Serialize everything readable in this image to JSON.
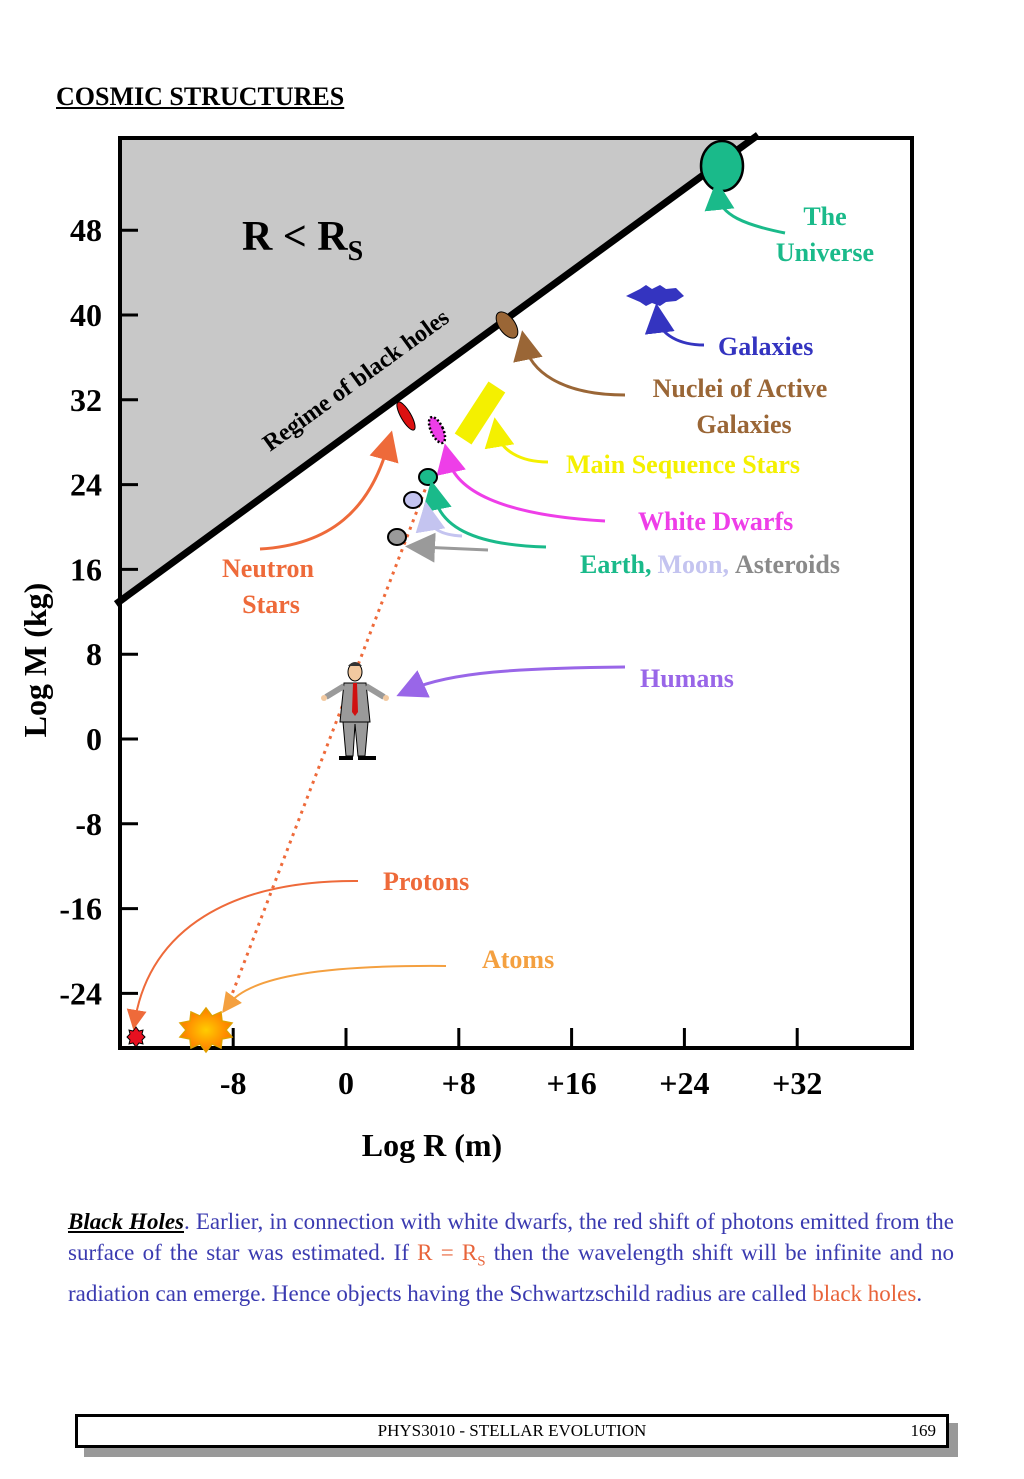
{
  "page_title": "COSMIC STRUCTURES",
  "chart_data": {
    "type": "scatter",
    "xlabel": "Log R (m)",
    "ylabel": "Log M (kg)",
    "xticks": [
      "-8",
      "0",
      "+8",
      "+16",
      "+24",
      "+32"
    ],
    "yticks": [
      "48",
      "40",
      "32",
      "24",
      "16",
      "8",
      "0",
      "-8",
      "-16",
      "-24"
    ],
    "region_label_main": "R < R",
    "region_label_sub": "S",
    "boundary_label": "Regime of black holes",
    "objects": [
      {
        "name": "The Universe",
        "line1": "The",
        "line2": "Universe",
        "color": "#1aba8a"
      },
      {
        "name": "Galaxies",
        "color": "#3434c0"
      },
      {
        "name": "Nuclei of Active Galaxies",
        "line1": "Nuclei of Active",
        "line2": "Galaxies",
        "color": "#9a6636"
      },
      {
        "name": "Main Sequence Stars",
        "color": "#f4f000"
      },
      {
        "name": "White Dwarfs",
        "color": "#ee3ee8"
      },
      {
        "name": "Neutron Stars",
        "line1": "Neutron",
        "line2": "Stars",
        "color": "#ee6a3a"
      },
      {
        "name": "Earth",
        "label": "Earth,",
        "color": "#1aba8a"
      },
      {
        "name": "Moon",
        "label": "Moon,",
        "color": "#c4c4f0"
      },
      {
        "name": "Asteroids",
        "label": "Asteroids",
        "color": "#8a8a8a"
      },
      {
        "name": "Humans",
        "color": "#9966e8"
      },
      {
        "name": "Protons",
        "color": "#ee6a3a"
      },
      {
        "name": "Atoms",
        "color": "#f4a040"
      }
    ]
  },
  "paragraph": {
    "lead": "Black Holes",
    "text1": ". Earlier, in connection with white dwarfs, the red shift of photons emitted from the surface of the star was estimated. If ",
    "eq_main": "R = R",
    "eq_sub": "S",
    "text2": " then the wavelength shift will be infinite and no radiation can emerge. Hence objects having the Schwartzschild radius are called ",
    "highlight": "black holes",
    "end": "."
  },
  "footer": {
    "course": "PHYS3010 - STELLAR EVOLUTION",
    "page": "169"
  }
}
